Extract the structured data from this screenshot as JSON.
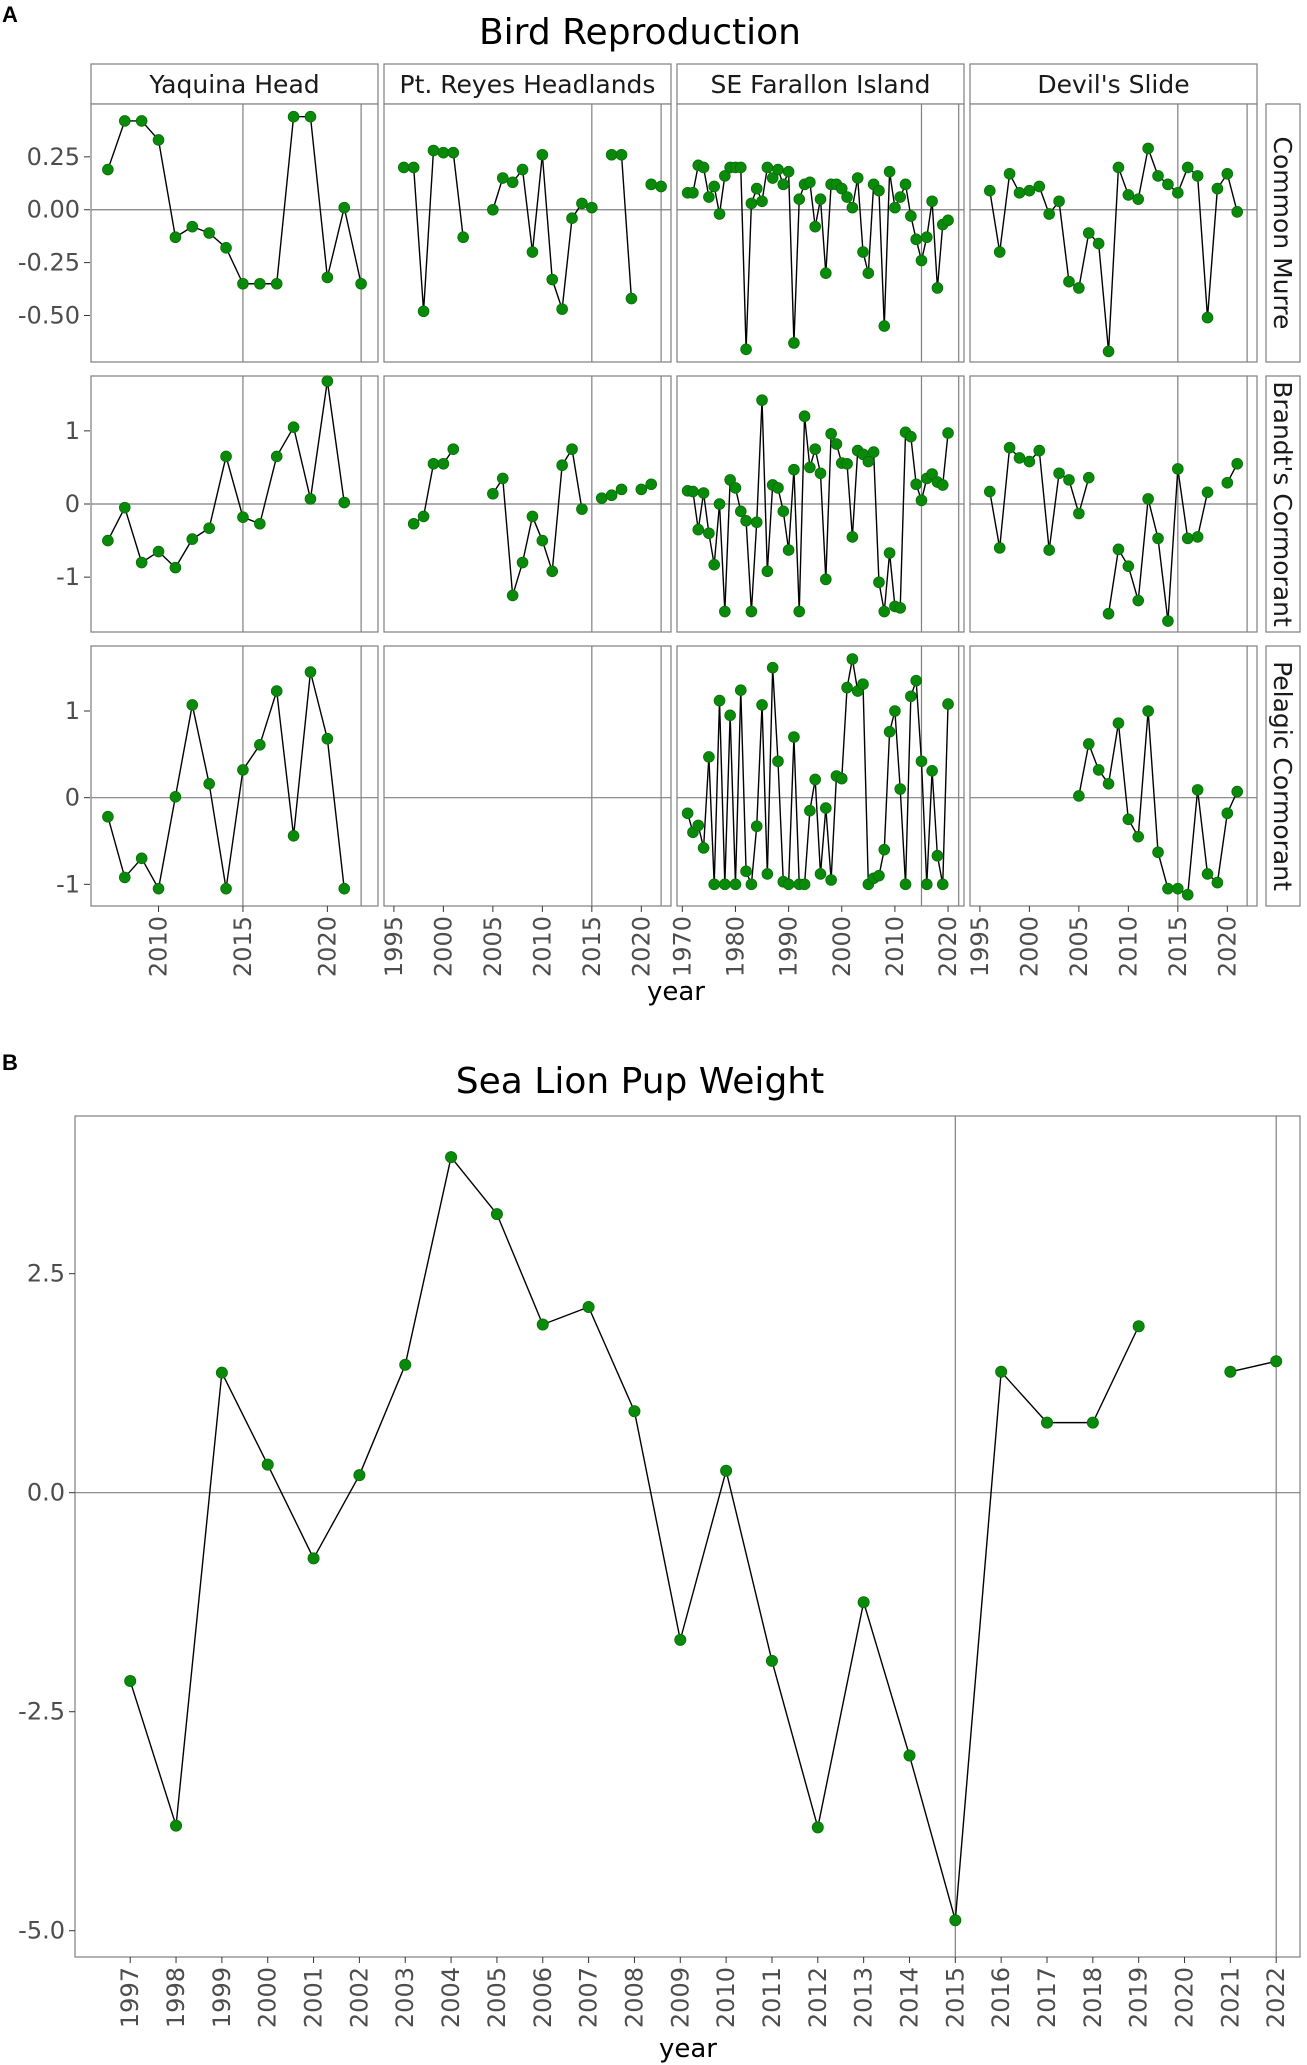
{
  "figure": {
    "panel_a_label": "A",
    "panel_b_label": "B"
  },
  "colors": {
    "point": "#0a8a0a",
    "point_stroke": "#067006",
    "line": "#000000",
    "panel_border": "#7f7f7f",
    "strip_fill": "#ffffff",
    "reference_line": "#7f7f7f"
  },
  "chart_data": [
    {
      "type": "line",
      "title": "Bird Reproduction",
      "xlabel": "year",
      "ylabel": "",
      "grid": false,
      "facet_columns": [
        "Yaquina Head",
        "Pt. Reyes Headlands",
        "SE Farallon Island",
        "Devil's Slide"
      ],
      "facet_rows": [
        "Common Murre",
        "Brandt's Cormorant",
        "Pelagic Cormorant"
      ],
      "xlims": [
        [
          2006,
          2023
        ],
        [
          1994,
          2023
        ],
        [
          1969,
          2023
        ],
        [
          1994,
          2023
        ]
      ],
      "x_ticks": [
        [
          2010,
          2015,
          2020
        ],
        [
          1995,
          2000,
          2005,
          2010,
          2015,
          2020
        ],
        [
          1970,
          1980,
          1990,
          2000,
          2010,
          2020
        ],
        [
          1995,
          2000,
          2005,
          2010,
          2015,
          2020
        ]
      ],
      "vlines": [
        2015,
        2022
      ],
      "rows": [
        {
          "name": "Common Murre",
          "ylim": [
            -0.72,
            0.5
          ],
          "y_ticks": [
            0.25,
            0.0,
            -0.25,
            -0.5
          ],
          "y_tick_labels": [
            "0.25",
            "0.00",
            "-0.25",
            "-0.50"
          ],
          "panels": [
            {
              "x": [
                2007,
                2008,
                2009,
                2010,
                2011,
                2012,
                2013,
                2014,
                2015,
                2016,
                2017,
                2018,
                2019,
                2020,
                2021,
                2022
              ],
              "y": [
                0.19,
                0.42,
                0.42,
                0.33,
                -0.13,
                -0.08,
                -0.11,
                -0.18,
                -0.35,
                -0.35,
                -0.35,
                0.44,
                0.44,
                -0.32,
                0.01,
                -0.35
              ]
            },
            {
              "x": [
                1996,
                1997,
                1998,
                1999,
                2000,
                2001,
                2002,
                null,
                2005,
                2006,
                2007,
                2008,
                2009,
                2010,
                2011,
                2012,
                2013,
                2014,
                2015,
                null,
                2017,
                2018,
                2019,
                null,
                2021,
                2022
              ],
              "y": [
                0.2,
                0.2,
                -0.48,
                0.28,
                0.27,
                0.27,
                -0.13,
                null,
                0.0,
                0.15,
                0.13,
                0.19,
                -0.2,
                0.26,
                -0.33,
                -0.47,
                -0.04,
                0.03,
                0.01,
                null,
                0.26,
                0.26,
                -0.42,
                null,
                0.12,
                0.11
              ]
            },
            {
              "x": [
                1971,
                1972,
                1973,
                1974,
                1975,
                1976,
                1977,
                1978,
                1979,
                1980,
                1981,
                1982,
                1983,
                1984,
                1985,
                1986,
                1987,
                1988,
                1989,
                1990,
                1991,
                1992,
                1993,
                1994,
                1995,
                1996,
                1997,
                1998,
                1999,
                2000,
                2001,
                2002,
                2003,
                2004,
                2005,
                2006,
                2007,
                2008,
                2009,
                2010,
                2011,
                2012,
                2013,
                2014,
                2015,
                2016,
                2017,
                2018,
                2019,
                2020
              ],
              "y": [
                0.08,
                0.08,
                0.21,
                0.2,
                0.06,
                0.11,
                -0.02,
                0.16,
                0.2,
                0.2,
                0.2,
                -0.66,
                0.03,
                0.1,
                0.04,
                0.2,
                0.15,
                0.19,
                0.12,
                0.18,
                -0.63,
                0.05,
                0.12,
                0.13,
                -0.08,
                0.05,
                -0.3,
                0.12,
                0.12,
                0.1,
                0.06,
                0.01,
                0.15,
                -0.2,
                -0.3,
                0.12,
                0.09,
                -0.55,
                0.18,
                0.01,
                0.06,
                0.12,
                -0.03,
                -0.14,
                -0.24,
                -0.13,
                0.04,
                -0.37,
                -0.07,
                -0.05
              ]
            },
            {
              "x": [
                1996,
                1997,
                1998,
                1999,
                2000,
                2001,
                2002,
                2003,
                2004,
                2005,
                2006,
                2007,
                2008,
                2009,
                2010,
                2011,
                2012,
                2013,
                2014,
                2015,
                2016,
                2017,
                2018,
                2019,
                2020,
                2021,
                2022
              ],
              "y": [
                0.09,
                -0.2,
                0.17,
                0.08,
                0.09,
                0.11,
                -0.02,
                0.04,
                -0.34,
                -0.37,
                -0.11,
                -0.16,
                -0.67,
                0.2,
                0.07,
                0.05,
                0.29,
                0.16,
                0.12,
                0.08,
                0.2,
                0.16,
                -0.51,
                0.1,
                0.17,
                -0.01,
                null
              ]
            }
          ]
        },
        {
          "name": "Brandt's Cormorant",
          "ylim": [
            -1.75,
            1.75
          ],
          "y_ticks": [
            1,
            0,
            -1
          ],
          "y_tick_labels": [
            "1",
            "0",
            "-1"
          ],
          "panels": [
            {
              "x": [
                2007,
                2008,
                2009,
                2010,
                2011,
                2012,
                2013,
                2014,
                2015,
                2016,
                2017,
                2018,
                2019,
                2020,
                2021,
                2022
              ],
              "y": [
                -0.5,
                -0.05,
                -0.8,
                -0.65,
                -0.87,
                -0.48,
                -0.33,
                0.65,
                -0.18,
                -0.27,
                0.65,
                1.05,
                0.07,
                1.68,
                0.02,
                null
              ]
            },
            {
              "x": [
                1997,
                1998,
                1999,
                2000,
                2001,
                null,
                2005,
                2006,
                2007,
                2008,
                2009,
                2010,
                2011,
                2012,
                2013,
                2014,
                2015,
                2016,
                2017,
                2018,
                null,
                2020,
                2021
              ],
              "y": [
                -0.27,
                -0.17,
                0.55,
                0.55,
                0.75,
                null,
                0.14,
                0.35,
                -1.25,
                -0.8,
                -0.17,
                -0.5,
                -0.92,
                0.53,
                0.75,
                -0.07,
                null,
                0.08,
                0.12,
                0.2,
                null,
                0.2,
                0.27
              ]
            },
            {
              "x": [
                1971,
                1972,
                1973,
                1974,
                1975,
                1976,
                1977,
                1978,
                1979,
                1980,
                1981,
                1982,
                1983,
                1984,
                1985,
                1986,
                1987,
                1988,
                1989,
                1990,
                1991,
                1992,
                1993,
                1994,
                1995,
                1996,
                1997,
                1998,
                1999,
                2000,
                2001,
                2002,
                2003,
                2004,
                2005,
                2006,
                2007,
                2008,
                2009,
                2010,
                2011,
                2012,
                2013,
                2014,
                2015,
                2016,
                2017,
                2018,
                2019,
                2020
              ],
              "y": [
                0.18,
                0.17,
                -0.35,
                0.15,
                -0.4,
                -0.83,
                0.0,
                -1.47,
                0.33,
                0.22,
                -0.1,
                -0.23,
                -1.47,
                -0.25,
                1.42,
                -0.92,
                0.26,
                0.22,
                -0.1,
                -0.63,
                0.47,
                -1.47,
                1.2,
                0.5,
                0.75,
                0.42,
                -1.03,
                0.96,
                0.82,
                0.56,
                0.55,
                -0.45,
                0.73,
                0.68,
                0.58,
                0.71,
                -1.07,
                -1.47,
                -0.67,
                -1.4,
                -1.42,
                0.98,
                0.92,
                0.27,
                0.05,
                0.35,
                0.41,
                0.3,
                0.26,
                0.97
              ]
            },
            {
              "x": [
                1996,
                1997,
                1998,
                1999,
                2000,
                2001,
                2002,
                2003,
                2004,
                2005,
                2006,
                null,
                2008,
                2009,
                2010,
                2011,
                2012,
                2013,
                2014,
                2015,
                2016,
                2017,
                2018,
                null,
                2020,
                2021
              ],
              "y": [
                0.17,
                -0.6,
                0.77,
                0.63,
                0.58,
                0.73,
                -0.63,
                0.42,
                0.33,
                -0.13,
                0.36,
                null,
                -1.5,
                -0.62,
                -0.85,
                -1.32,
                0.07,
                -0.47,
                -1.6,
                0.48,
                -0.47,
                -0.45,
                0.16,
                null,
                0.29,
                0.55
              ]
            }
          ]
        },
        {
          "name": "Pelagic Cormorant",
          "ylim": [
            -1.25,
            1.75
          ],
          "y_ticks": [
            1,
            0,
            -1
          ],
          "y_tick_labels": [
            "1",
            "0",
            "-1"
          ],
          "panels": [
            {
              "x": [
                2007,
                2008,
                2009,
                2010,
                2011,
                2012,
                2013,
                2014,
                2015,
                2016,
                2017,
                2018,
                2019,
                2020,
                2021,
                2022
              ],
              "y": [
                -0.22,
                -0.92,
                -0.7,
                -1.05,
                0.01,
                1.07,
                0.16,
                -1.05,
                0.32,
                0.61,
                1.23,
                -0.44,
                1.45,
                0.68,
                -1.05,
                null
              ]
            },
            {
              "x": [],
              "y": []
            },
            {
              "x": [
                1971,
                1972,
                1973,
                1974,
                1975,
                1976,
                1977,
                1978,
                1979,
                1980,
                1981,
                1982,
                1983,
                1984,
                1985,
                1986,
                1987,
                1988,
                1989,
                1990,
                1991,
                1992,
                1993,
                1994,
                1995,
                1996,
                1997,
                1998,
                1999,
                2000,
                2001,
                2002,
                2003,
                2004,
                2005,
                2006,
                2007,
                2008,
                2009,
                2010,
                2011,
                2012,
                2013,
                2014,
                2015,
                2016,
                2017,
                2018,
                2019,
                2020
              ],
              "y": [
                -0.18,
                -0.4,
                -0.32,
                -0.58,
                0.47,
                -1.0,
                1.12,
                -1.0,
                0.95,
                -1.0,
                1.24,
                -0.85,
                -1.0,
                -0.33,
                1.07,
                -0.88,
                1.5,
                0.42,
                -0.97,
                -1.0,
                0.7,
                -1.0,
                -1.0,
                -0.15,
                0.21,
                -0.88,
                -0.12,
                -0.95,
                0.25,
                0.22,
                1.27,
                1.6,
                1.23,
                1.31,
                -1.0,
                -0.93,
                -0.9,
                -0.6,
                0.76,
                1.0,
                0.1,
                -1.0,
                1.17,
                1.35,
                0.42,
                -1.0,
                0.31,
                -0.67,
                -1.0,
                1.08
              ]
            },
            {
              "x": [
                2005,
                2006,
                2007,
                2008,
                2009,
                2010,
                2011,
                2012,
                2013,
                2014,
                2015,
                2016,
                2017,
                2018,
                2019,
                2020,
                2021
              ],
              "y": [
                0.02,
                0.62,
                0.32,
                0.16,
                0.86,
                -0.25,
                -0.45,
                1.0,
                -0.63,
                -1.05,
                -1.05,
                -1.12,
                0.09,
                -0.88,
                -0.98,
                -0.18,
                0.07
              ]
            }
          ]
        }
      ]
    },
    {
      "type": "line",
      "title": "Sea Lion Pup Weight",
      "xlabel": "year",
      "ylabel": "",
      "grid": false,
      "categories": [
        "1997",
        "1998",
        "1999",
        "2000",
        "2001",
        "2002",
        "2003",
        "2004",
        "2005",
        "2006",
        "2007",
        "2008",
        "2009",
        "2010",
        "2011",
        "2012",
        "2013",
        "2014",
        "2015",
        "2016",
        "2017",
        "2018",
        "2019",
        "2020",
        "2021",
        "2022"
      ],
      "values": [
        -2.15,
        -3.8,
        1.37,
        0.32,
        -0.75,
        0.2,
        1.46,
        3.83,
        3.18,
        1.92,
        2.12,
        0.93,
        -1.68,
        0.25,
        -1.92,
        -3.82,
        -1.25,
        -3.0,
        -4.88,
        1.38,
        0.8,
        0.8,
        1.9,
        null,
        1.38,
        1.5
      ],
      "ylim": [
        -5.3,
        4.3
      ],
      "y_ticks": [
        2.5,
        0.0,
        -2.5,
        -5.0
      ],
      "y_tick_labels": [
        "2.5",
        "0.0",
        "-2.5",
        "-5.0"
      ],
      "vlines": [
        "2015",
        "2022"
      ]
    }
  ]
}
